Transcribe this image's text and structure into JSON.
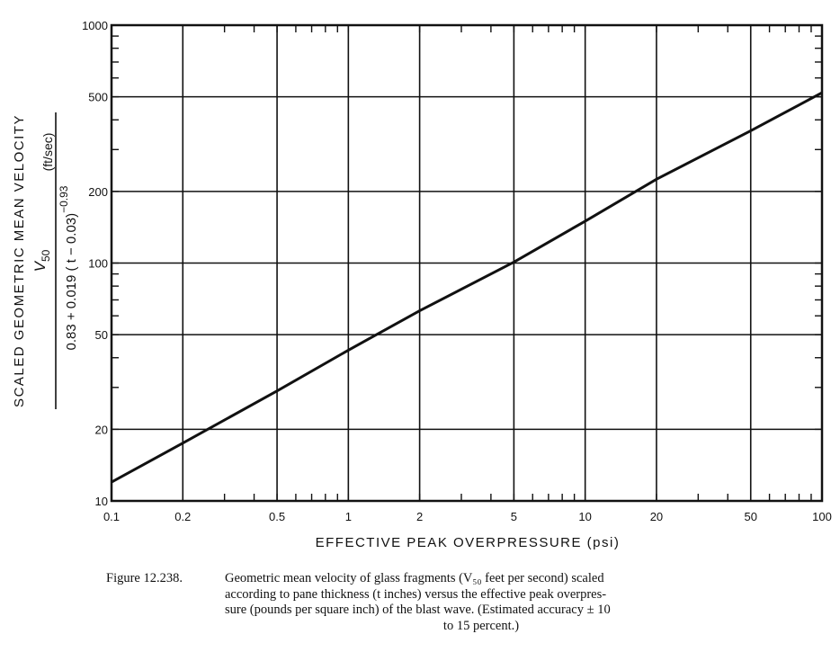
{
  "chart_data": {
    "type": "line",
    "x_scale": "log",
    "y_scale": "log",
    "xlim": [
      0.1,
      100
    ],
    "ylim": [
      10,
      1000
    ],
    "x_ticks": [
      0.1,
      0.2,
      0.5,
      1,
      2,
      5,
      10,
      20,
      50,
      100
    ],
    "x_tick_labels": [
      "0.1",
      "0.2",
      "0.5",
      "1",
      "2",
      "5",
      "10",
      "20",
      "50",
      "100"
    ],
    "y_ticks": [
      10,
      20,
      50,
      100,
      200,
      500,
      1000
    ],
    "y_tick_labels": [
      "10",
      "20",
      "50",
      "100",
      "200",
      "500",
      "1000"
    ],
    "grid": true,
    "xlabel": "EFFECTIVE PEAK OVERPRESSURE (psi)",
    "ylabel": {
      "title": "SCALED GEOMETRIC MEAN VELOCITY",
      "numerator": "V",
      "numerator_sub": "50",
      "denominator": "0.83 + 0.019 ( t − 0.03)",
      "denominator_exp": "−0.93",
      "units": "(ft/sec)"
    },
    "series": [
      {
        "x": [
          0.1,
          0.2,
          0.5,
          1,
          2,
          5,
          10,
          20,
          50,
          100
        ],
        "y": [
          12,
          17.5,
          29,
          43,
          63,
          101,
          150,
          225,
          360,
          520
        ]
      }
    ]
  },
  "caption": {
    "label": "Figure 12.238.",
    "lines": [
      "Geometric mean velocity of glass fragments (V₅₀ feet per second) scaled",
      "according to pane thickness (t inches) versus the effective peak overpres-",
      "sure (pounds per square inch) of the blast wave. (Estimated accuracy ± 10",
      "to 15 percent.)"
    ]
  }
}
